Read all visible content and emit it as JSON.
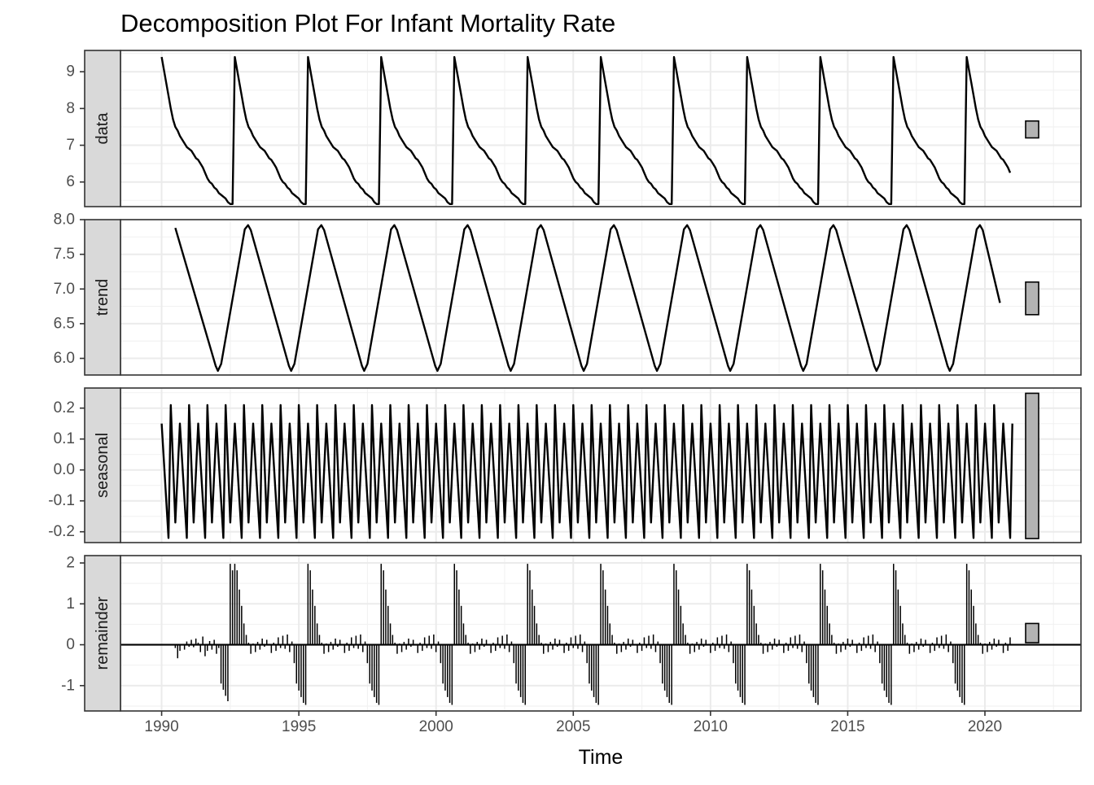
{
  "chart_data": {
    "type": "line",
    "title": "Decomposition Plot For Infant Mortality Rate",
    "xlabel": "Time",
    "xlim": [
      1988.5,
      2023.5
    ],
    "x_ticks": [
      "1990",
      "1995",
      "2000",
      "2005",
      "2010",
      "2015",
      "2020"
    ],
    "x_tick_values": [
      1990,
      1995,
      2000,
      2005,
      2010,
      2015,
      2020
    ],
    "grid": true,
    "series_color": "#000000",
    "panel_border": "#333333",
    "strip_fill": "#d9d9d9",
    "scale_bar_fill": "#b3b3b3",
    "panels": [
      {
        "name": "data",
        "type": "line",
        "ylim": [
          5.33,
          9.58
        ],
        "y_ticks": [
          "6",
          "7",
          "8",
          "9"
        ],
        "y_tick_values": [
          6,
          7,
          8,
          9
        ],
        "range_bar": [
          7.2,
          7.66
        ],
        "cycle_start": 1990.0,
        "cycle_length_years": 2.667,
        "cycle_count": 12,
        "cycle_pattern_x_offsets": [
          0,
          0.083,
          0.167,
          0.25,
          0.333,
          0.417,
          0.5,
          0.583,
          0.667,
          0.75,
          0.833,
          0.917,
          1.0,
          1.083,
          1.167,
          1.25,
          1.333,
          1.417,
          1.5,
          1.583,
          1.667,
          1.75,
          1.833,
          1.917,
          2.0,
          2.083,
          2.167,
          2.25,
          2.333,
          2.417,
          2.5,
          2.583
        ],
        "cycle_pattern_values": [
          9.4,
          9.05,
          8.7,
          8.35,
          8.0,
          7.7,
          7.5,
          7.4,
          7.25,
          7.15,
          7.05,
          6.95,
          6.9,
          6.85,
          6.75,
          6.65,
          6.6,
          6.5,
          6.4,
          6.25,
          6.1,
          6.0,
          5.95,
          5.85,
          5.8,
          5.7,
          5.65,
          5.6,
          5.55,
          5.45,
          5.4,
          5.4
        ],
        "last_cycle_values": [
          9.4,
          9.05,
          8.7,
          8.35,
          8.0,
          7.7,
          7.5,
          7.4,
          7.25,
          7.15,
          7.05,
          6.95,
          6.9,
          6.85,
          6.75,
          6.65,
          6.6,
          6.5,
          6.4,
          6.25
        ]
      },
      {
        "name": "trend",
        "type": "line",
        "ylim": [
          5.76,
          8.0
        ],
        "y_ticks": [
          "6.0",
          "6.5",
          "7.0",
          "7.5",
          "8.0"
        ],
        "y_tick_values": [
          6.0,
          6.5,
          7.0,
          7.5,
          8.0
        ],
        "range_bar": [
          6.63,
          7.1
        ],
        "first_peak_x": 1990.5,
        "first_peak_value": 7.88,
        "trough_x": [
          1992.05,
          1994.72,
          1997.38,
          2000.05,
          2002.72,
          2005.38,
          2008.05,
          2010.72,
          2013.38,
          2016.05,
          2018.72
        ],
        "trough_value": 5.82,
        "peak_x": [
          1993.15,
          1995.82,
          1998.48,
          2001.15,
          2003.82,
          2006.48,
          2009.15,
          2011.82,
          2014.48,
          2017.15,
          2019.82
        ],
        "peak_value": 7.92,
        "end_x": 2020.55,
        "end_value": 6.8
      },
      {
        "name": "seasonal",
        "type": "line",
        "ylim": [
          -0.235,
          0.265
        ],
        "y_ticks": [
          "-0.2",
          "-0.1",
          "0.0",
          "0.1",
          "0.2"
        ],
        "y_tick_values": [
          -0.2,
          -0.1,
          0.0,
          0.1,
          0.2
        ],
        "range_bar": [
          -0.222,
          0.248
        ],
        "period_years": 0.6667,
        "pattern_x_offsets": [
          0,
          0.25,
          0.333,
          0.5
        ],
        "pattern_values": [
          0.15,
          -0.22,
          0.21,
          -0.17
        ],
        "x_end": 2021.0
      },
      {
        "name": "remainder",
        "type": "bar",
        "ylim": [
          -1.62,
          2.18
        ],
        "y_ticks": [
          "-1",
          "0",
          "1",
          "2"
        ],
        "y_tick_values": [
          -1,
          0,
          1,
          2
        ],
        "range_bar": [
          0.05,
          0.52
        ],
        "cycle_start": 1990.0,
        "cycle_length_years": 2.667,
        "bar_step_years": 0.0833,
        "cycle_pattern_values": [
          0.0,
          0.0,
          0.0,
          0.0,
          0.0,
          0.0,
          -0.08,
          -0.33,
          -0.15,
          0.02,
          -0.12,
          0.08,
          -0.05,
          0.12,
          -0.06,
          0.15,
          0.05,
          -0.18,
          0.2,
          -0.28,
          -0.15,
          0.09,
          -0.12,
          0.12,
          -0.22,
          -0.08,
          -0.95,
          -1.1,
          -1.25,
          -1.38,
          1.98,
          1.82
        ],
        "peak_cycle_values": [
          1.98,
          1.82,
          1.35,
          0.95,
          0.52,
          0.24,
          0.05,
          -0.22,
          0.03,
          -0.18,
          0.07,
          -0.12,
          0.15,
          -0.05,
          0.12,
          0.02,
          -0.2,
          0.05,
          -0.15,
          0.18,
          -0.08,
          0.22,
          -0.1,
          0.25,
          -0.18,
          0.08,
          -0.45,
          -0.95,
          -1.12,
          -1.28,
          -1.42,
          -1.47
        ],
        "last_cycle_values": [
          1.98,
          1.82,
          1.35,
          0.95,
          0.52,
          0.24,
          0.05,
          -0.22,
          0.03,
          -0.18,
          0.07,
          -0.12,
          0.15,
          -0.05,
          0.12,
          0.02,
          -0.2,
          0.05,
          -0.15,
          0.18
        ]
      }
    ]
  }
}
